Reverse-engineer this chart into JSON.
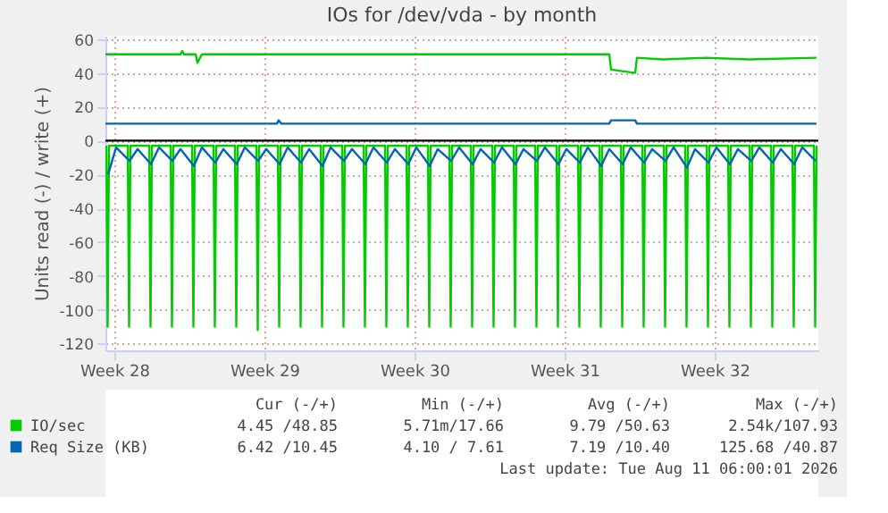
{
  "chart_data": {
    "type": "line",
    "title": "IOs for /dev/vda - by month",
    "ylabel": "Units read (-) / write (+)",
    "xlim": [
      "2026-07-09T02:00",
      "2026-08-11T08:00"
    ],
    "xticks": [
      {
        "value": "2026-07-09T12:00",
        "label": "Week 28"
      },
      {
        "value": "2026-07-16T12:00",
        "label": "Week 29"
      },
      {
        "value": "2026-07-23T12:00",
        "label": "Week 30"
      },
      {
        "value": "2026-07-30T12:00",
        "label": "Week 31"
      },
      {
        "value": "2026-08-06T12:00",
        "label": "Week 32"
      }
    ],
    "ylim": [
      -124,
      62
    ],
    "yticks": [
      -120,
      -100,
      -80,
      -60,
      -40,
      -20,
      0,
      20,
      40,
      60
    ],
    "grid": true,
    "legend": "bottom",
    "ref_lines": [
      {
        "axis": "y",
        "value": 0,
        "color": "#000000"
      }
    ],
    "series": [
      {
        "color": "#00cc00",
        "x": [
          "2026-07-09T03:00",
          "2026-07-09T04:30",
          "2026-07-09T06:00",
          "2026-07-10T03:00",
          "2026-07-10T04:30",
          "2026-07-10T06:00",
          "2026-07-11T03:00",
          "2026-07-11T04:30",
          "2026-07-11T06:00",
          "2026-07-12T03:00",
          "2026-07-12T04:30",
          "2026-07-12T06:00",
          "2026-07-13T03:00",
          "2026-07-13T04:30",
          "2026-07-13T06:00",
          "2026-07-14T03:00",
          "2026-07-14T04:30",
          "2026-07-14T06:00",
          "2026-07-15T03:00",
          "2026-07-15T04:30",
          "2026-07-15T06:00",
          "2026-07-16T03:00",
          "2026-07-16T04:30",
          "2026-07-16T06:00",
          "2026-07-17T03:00",
          "2026-07-17T04:30",
          "2026-07-17T06:00",
          "2026-07-18T03:00",
          "2026-07-18T04:30",
          "2026-07-18T06:00",
          "2026-07-19T03:00",
          "2026-07-19T04:30",
          "2026-07-19T06:00",
          "2026-07-20T03:00",
          "2026-07-20T04:30",
          "2026-07-20T06:00",
          "2026-07-21T03:00",
          "2026-07-21T04:30",
          "2026-07-21T06:00",
          "2026-07-22T03:00",
          "2026-07-22T04:30",
          "2026-07-22T06:00",
          "2026-07-23T03:00",
          "2026-07-23T04:30",
          "2026-07-23T06:00",
          "2026-07-24T03:00",
          "2026-07-24T04:30",
          "2026-07-24T06:00",
          "2026-07-25T03:00",
          "2026-07-25T04:30",
          "2026-07-25T06:00",
          "2026-07-26T03:00",
          "2026-07-26T04:30",
          "2026-07-26T06:00",
          "2026-07-27T03:00",
          "2026-07-27T04:30",
          "2026-07-27T06:00",
          "2026-07-28T03:00",
          "2026-07-28T04:30",
          "2026-07-28T06:00",
          "2026-07-29T03:00",
          "2026-07-29T04:30",
          "2026-07-29T06:00",
          "2026-07-30T03:00",
          "2026-07-30T04:30",
          "2026-07-30T06:00",
          "2026-07-31T03:00",
          "2026-07-31T04:30",
          "2026-07-31T06:00",
          "2026-08-01T03:00",
          "2026-08-01T04:30",
          "2026-08-01T06:00",
          "2026-08-02T03:00",
          "2026-08-02T04:30",
          "2026-08-02T06:00",
          "2026-08-03T03:00",
          "2026-08-03T04:30",
          "2026-08-03T06:00",
          "2026-08-04T03:00",
          "2026-08-04T04:30",
          "2026-08-04T06:00",
          "2026-08-05T03:00",
          "2026-08-05T04:30",
          "2026-08-05T06:00",
          "2026-08-06T03:00",
          "2026-08-06T04:30",
          "2026-08-06T06:00",
          "2026-08-07T03:00",
          "2026-08-07T04:30",
          "2026-08-07T06:00",
          "2026-08-08T03:00",
          "2026-08-08T04:30",
          "2026-08-08T06:00",
          "2026-08-09T03:00",
          "2026-08-09T04:30",
          "2026-08-09T06:00",
          "2026-08-10T03:00",
          "2026-08-10T04:30",
          "2026-08-10T06:00",
          "2026-08-11T03:00",
          "2026-08-11T04:30",
          "2026-08-11T06:00"
        ],
        "values": [
          -3,
          -110,
          -3,
          -3,
          -110,
          -3,
          -3,
          -110,
          -3,
          -3,
          -110,
          -3,
          -3,
          -110,
          -3,
          -3,
          -110,
          -3,
          -3,
          -110,
          -3,
          -3,
          -112,
          -3,
          -3,
          -110,
          -3,
          -3,
          -110,
          -3,
          -3,
          -110,
          -3,
          -3,
          -110,
          -3,
          -3,
          -110,
          -3,
          -3,
          -110,
          -3,
          -3,
          -110,
          -3,
          -3,
          -110,
          -3,
          -3,
          -110,
          -3,
          -3,
          -110,
          -3,
          -3,
          -110,
          -3,
          -3,
          -110,
          -3,
          -3,
          -110,
          -3,
          -3,
          -110,
          -3,
          -3,
          -110,
          -3,
          -3,
          -110,
          -3,
          -3,
          -110,
          -3,
          -3,
          -110,
          -3,
          -3,
          -110,
          -3,
          -3,
          -110,
          -3,
          -3,
          -110,
          -3,
          -3,
          -110,
          -3,
          -3,
          -110,
          -3,
          -3,
          -110,
          -3,
          -3,
          -110,
          -3,
          -3,
          -110,
          -3
        ]
      },
      {
        "color": "#0066b3",
        "x": [
          "2026-07-09T05:00",
          "2026-07-09T14:00",
          "2026-07-10T05:00",
          "2026-07-10T14:00",
          "2026-07-11T05:00",
          "2026-07-11T14:00",
          "2026-07-12T05:00",
          "2026-07-12T14:00",
          "2026-07-13T05:00",
          "2026-07-13T14:00",
          "2026-07-14T05:00",
          "2026-07-14T14:00",
          "2026-07-15T05:00",
          "2026-07-15T14:00",
          "2026-07-16T05:00",
          "2026-07-16T14:00",
          "2026-07-17T05:00",
          "2026-07-17T14:00",
          "2026-07-18T05:00",
          "2026-07-18T14:00",
          "2026-07-19T05:00",
          "2026-07-19T14:00",
          "2026-07-20T05:00",
          "2026-07-20T14:00",
          "2026-07-21T05:00",
          "2026-07-21T14:00",
          "2026-07-22T05:00",
          "2026-07-22T14:00",
          "2026-07-23T05:00",
          "2026-07-23T14:00",
          "2026-07-24T05:00",
          "2026-07-24T14:00",
          "2026-07-25T05:00",
          "2026-07-25T14:00",
          "2026-07-26T05:00",
          "2026-07-26T14:00",
          "2026-07-27T05:00",
          "2026-07-27T14:00",
          "2026-07-28T05:00",
          "2026-07-28T14:00",
          "2026-07-29T05:00",
          "2026-07-29T14:00",
          "2026-07-30T05:00",
          "2026-07-30T14:00",
          "2026-07-31T05:00",
          "2026-07-31T14:00",
          "2026-08-01T05:00",
          "2026-08-01T14:00",
          "2026-08-02T05:00",
          "2026-08-02T14:00",
          "2026-08-03T05:00",
          "2026-08-03T14:00",
          "2026-08-04T05:00",
          "2026-08-04T14:00",
          "2026-08-05T05:00",
          "2026-08-05T14:00",
          "2026-08-06T05:00",
          "2026-08-06T14:00",
          "2026-08-07T05:00",
          "2026-08-07T14:00",
          "2026-08-08T05:00",
          "2026-08-08T14:00",
          "2026-08-09T05:00",
          "2026-08-09T14:00",
          "2026-08-10T05:00",
          "2026-08-10T14:00",
          "2026-08-11T05:00"
        ],
        "values": [
          -20,
          -4,
          -12,
          -5,
          -14,
          -4,
          -12,
          -5,
          -15,
          -4,
          -13,
          -5,
          -14,
          -4,
          -12,
          -5,
          -14,
          -4,
          -13,
          -5,
          -15,
          -4,
          -12,
          -5,
          -14,
          -4,
          -13,
          -5,
          -14,
          -4,
          -15,
          -5,
          -12,
          -4,
          -14,
          -5,
          -13,
          -4,
          -14,
          -5,
          -12,
          -4,
          -14,
          -5,
          -13,
          -4,
          -15,
          -5,
          -14,
          -4,
          -13,
          -5,
          -12,
          -4,
          -16,
          -5,
          -13,
          -4,
          -14,
          -5,
          -12,
          -4,
          -13,
          -5,
          -14,
          -4,
          -12
        ]
      },
      {
        "name": "IO/sec",
        "color": "#00cc00",
        "x": [
          "2026-07-09T02:00",
          "2026-07-12T14:00",
          "2026-07-12T16:00",
          "2026-07-12T18:00",
          "2026-07-13T07:00",
          "2026-07-13T09:00",
          "2026-07-13T14:00",
          "2026-07-19T02:00",
          "2026-07-29T02:00",
          "2026-08-01T14:00",
          "2026-08-01T16:00",
          "2026-08-02T19:00",
          "2026-08-02T21:00",
          "2026-08-04T02:00",
          "2026-08-06T02:00",
          "2026-08-08T02:00",
          "2026-08-11T06:00"
        ],
        "values": [
          51,
          51,
          53,
          51,
          51,
          46,
          51,
          51,
          51,
          51,
          42,
          40,
          49,
          48,
          49,
          48,
          49
        ]
      },
      {
        "name": "Req Size (KB)",
        "color": "#0066b3",
        "x": [
          "2026-07-09T02:00",
          "2026-07-17T02:00",
          "2026-07-17T04:00",
          "2026-07-17T07:00",
          "2026-08-01T14:00",
          "2026-08-01T16:00",
          "2026-08-02T19:00",
          "2026-08-02T21:00",
          "2026-08-11T06:00"
        ],
        "values": [
          10,
          10,
          12,
          10,
          10,
          12,
          12,
          10,
          10
        ]
      }
    ],
    "annotations": [
      "Cur (-/+)",
      "Min (-/+)",
      "Avg (-/+)",
      "Max (-/+)",
      "4.45 /48.85",
      "5.71m/17.66",
      "9.79 /50.63",
      "2.54k/107.93",
      "6.42 /10.45",
      "4.10 / 7.61",
      "7.19 /10.40",
      "125.68 /40.87",
      "Last update: Tue Aug 11 06:00:01 2026"
    ]
  }
}
